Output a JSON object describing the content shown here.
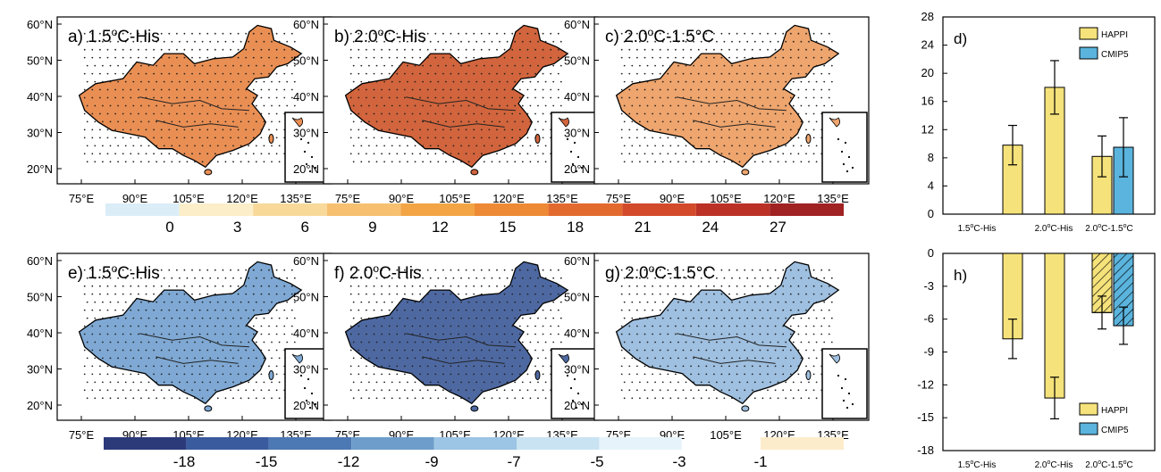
{
  "chart_data": {
    "maps": {
      "lat_labels": [
        "60°N",
        "50°N",
        "40°N",
        "30°N",
        "20°N"
      ],
      "lon_labels": [
        "75°E",
        "90°E",
        "105°E",
        "120°E",
        "135°E"
      ],
      "top_row": [
        {
          "letter": "a) ",
          "base": "1.5",
          "sup": "o",
          "rest": "C-His",
          "tone": 0.45
        },
        {
          "letter": "b) ",
          "base": "2.0",
          "sup": "o",
          "rest": "C-His",
          "tone": 0.72
        },
        {
          "letter": "c) ",
          "base": "2.0",
          "sup": "o",
          "rest": "C-1.5°C",
          "tone": 0.3
        }
      ],
      "bottom_row": [
        {
          "letter": "e) ",
          "base": "1.5",
          "sup": "o",
          "rest": "C-His",
          "tone": 0.5
        },
        {
          "letter": "f) ",
          "base": "2.0",
          "sup": "o",
          "rest": "C-His",
          "tone": 0.78
        },
        {
          "letter": "g) ",
          "base": "2.0",
          "sup": "o",
          "rest": "C-1.5°C",
          "tone": 0.35
        }
      ]
    },
    "colorbar_top": {
      "labels": [
        "0",
        "3",
        "6",
        "9",
        "12",
        "15",
        "18",
        "21",
        "24",
        "27"
      ],
      "colors": [
        "#dbeef8",
        "#fbeec8",
        "#f8d99a",
        "#f6c070",
        "#f3a546",
        "#ee8a35",
        "#e36a2e",
        "#d34a2a",
        "#bb3126",
        "#a02223"
      ]
    },
    "colorbar_bottom": {
      "labels": [
        "-18",
        "-15",
        "-12",
        "-9",
        "-7",
        "-5",
        "-3",
        "-1"
      ],
      "colors": [
        "#2c3a7a",
        "#3a5b9e",
        "#4c78b4",
        "#6e9dcb",
        "#9cc4e4",
        "#c9e3f3",
        "#e6f3fa",
        "#fdeccb"
      ]
    },
    "bar_panels": [
      {
        "type": "bar",
        "label": "d)",
        "ylim": [
          0,
          28
        ],
        "yticks": [
          "28",
          "24",
          "20",
          "16",
          "12",
          "8",
          "4",
          "0"
        ],
        "categories": [
          {
            "base": "1.5",
            "sup": "o",
            "rest": "C-His"
          },
          {
            "base": "2.0",
            "sup": "o",
            "rest": "C-His"
          },
          {
            "base": "2.0",
            "sup": "o",
            "rest": "C-1.5",
            "sup2": "o",
            "rest2": "C"
          }
        ],
        "legend": [
          "HAPPI",
          "CMIP5"
        ],
        "series": [
          {
            "name": "HAPPI",
            "color": "#f5e27a",
            "values": [
              9.8,
              18.0,
              8.2
            ],
            "err": [
              2.8,
              3.8,
              2.9
            ],
            "hatched": false
          },
          {
            "name": "CMIP5",
            "color": "#5ab4dd",
            "values": [
              null,
              null,
              9.5
            ],
            "err": [
              null,
              null,
              4.2
            ],
            "hatched": false
          }
        ]
      },
      {
        "type": "bar",
        "label": "h)",
        "ylim": [
          -18,
          0
        ],
        "yticks": [
          "0",
          "-3",
          "-6",
          "-9",
          "-12",
          "-15",
          "-18"
        ],
        "categories": [
          {
            "base": "1.5",
            "sup": "o",
            "rest": "C-His"
          },
          {
            "base": "2.0",
            "sup": "o",
            "rest": "C-His"
          },
          {
            "base": "2.0",
            "sup": "o",
            "rest": "C-1.5",
            "sup2": "o",
            "rest2": "C"
          }
        ],
        "legend": [
          "HAPPI",
          "CMIP5"
        ],
        "series": [
          {
            "name": "HAPPI",
            "color": "#f5e27a",
            "values": [
              -7.8,
              -13.2,
              -5.4
            ],
            "err": [
              1.8,
              1.9,
              1.5
            ],
            "hatched": [
              false,
              false,
              true
            ]
          },
          {
            "name": "CMIP5",
            "color": "#5ab4dd",
            "values": [
              null,
              null,
              -6.6
            ],
            "err": [
              null,
              null,
              1.7
            ],
            "hatched": [
              false,
              false,
              true
            ]
          }
        ]
      }
    ]
  }
}
